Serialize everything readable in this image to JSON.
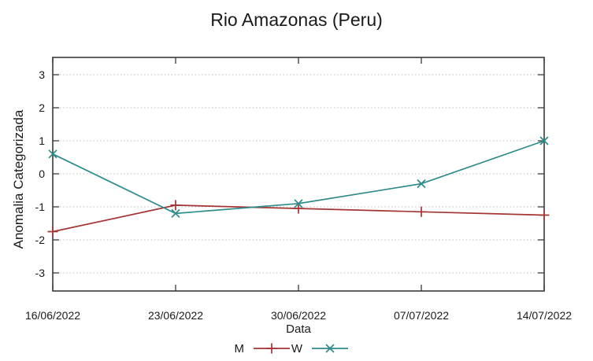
{
  "chart_data": {
    "type": "line",
    "title": "Rio Amazonas (Peru)",
    "xlabel": "Data",
    "ylabel": "Anomalia Categorizada",
    "x": [
      "16/06/2022",
      "23/06/2022",
      "30/06/2022",
      "07/07/2022",
      "14/07/2022"
    ],
    "yticks": [
      -3,
      -2,
      -1,
      0,
      1,
      2,
      3
    ],
    "ylim": [
      -3.55,
      3.55
    ],
    "grid": "horizontal-dotted",
    "legend_position": "bottom-center",
    "series": [
      {
        "name": "M",
        "color": "#a43535",
        "marker": "plus",
        "values": [
          -1.75,
          -0.95,
          -1.05,
          -1.15,
          -1.25
        ]
      },
      {
        "name": "W",
        "color": "#2e8b8b",
        "marker": "cross",
        "values": [
          0.6,
          -1.2,
          -0.9,
          -0.3,
          1.0
        ]
      }
    ]
  },
  "colors": {
    "background": "#ffffff",
    "border": "#3a3a3a",
    "grid": "#bcbcbc",
    "text": "#1a1a1a"
  }
}
